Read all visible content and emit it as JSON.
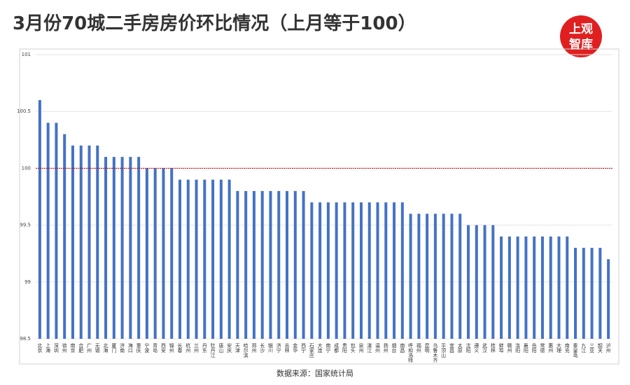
{
  "chart_data": {
    "type": "bar",
    "title": "3月份70城二手房房价环比情况（上月等于100）",
    "logo": [
      "上观",
      "智库"
    ],
    "source": "数据来源：国家统计局",
    "categories": [
      "北京",
      "上海",
      "深圳",
      "徐州",
      "南京",
      "合肥",
      "广州",
      "无锡",
      "北海",
      "厦门",
      "济南",
      "海口",
      "重庆",
      "宁波",
      "青岛",
      "西安",
      "锦州",
      "长春",
      "杭州",
      "兰州",
      "丹东",
      "牡丹江",
      "唐山",
      "安庆",
      "天津",
      "哈尔滨",
      "郑州",
      "长沙",
      "银川",
      "济宁",
      "吉林",
      "金华",
      "西宁",
      "石家庄",
      "大连",
      "南宁",
      "成都",
      "贵阳",
      "包头",
      "泉州",
      "湛江",
      "温州",
      "扬州",
      "烟台",
      "南昌",
      "呼和浩特",
      "福州",
      "昆明",
      "乌鲁木齐",
      "平顶山",
      "宜昌",
      "太原",
      "沈阳",
      "遵义",
      "武汉",
      "桂林",
      "蚌埠",
      "赣州",
      "洛阳",
      "襄阳",
      "岳阳",
      "常德",
      "惠州",
      "大理",
      "南充",
      "秦皇岛",
      "九江",
      "三亚",
      "韶关",
      "泸州"
    ],
    "values": [
      100.6,
      100.4,
      100.4,
      100.3,
      100.2,
      100.2,
      100.2,
      100.2,
      100.1,
      100.1,
      100.1,
      100.1,
      100.1,
      100,
      100,
      100,
      100,
      99.9,
      99.9,
      99.9,
      99.9,
      99.9,
      99.9,
      99.9,
      99.8,
      99.8,
      99.8,
      99.8,
      99.8,
      99.8,
      99.8,
      99.8,
      99.8,
      99.7,
      99.7,
      99.7,
      99.7,
      99.7,
      99.7,
      99.7,
      99.7,
      99.7,
      99.7,
      99.7,
      99.7,
      99.6,
      99.6,
      99.6,
      99.6,
      99.6,
      99.6,
      99.6,
      99.5,
      99.5,
      99.5,
      99.5,
      99.4,
      99.4,
      99.4,
      99.4,
      99.4,
      99.4,
      99.4,
      99.4,
      99.4,
      99.3,
      99.3,
      99.3,
      99.3,
      99.2
    ],
    "color": "#4472c4",
    "ylim": [
      98.5,
      101
    ],
    "yticks": [
      98.5,
      99,
      99.5,
      100,
      100.5,
      101
    ],
    "grid": true,
    "reference_line": 100,
    "reference_color": "#c00000"
  }
}
